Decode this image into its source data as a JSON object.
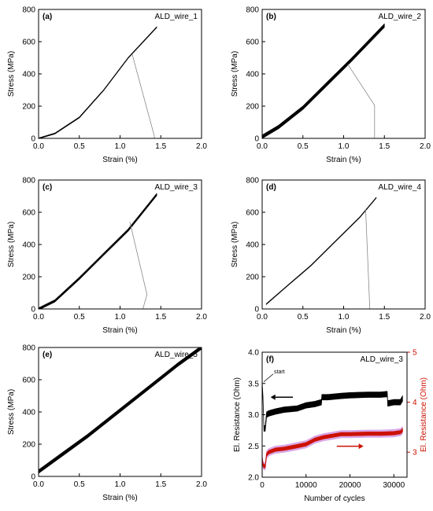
{
  "figure": {
    "colors": {
      "primary": "#000000",
      "secondary": "#cc1100",
      "secondary_halo": "#d9a6e6",
      "failure_line": "#888888"
    }
  },
  "chart_data": [
    {
      "panel": "(a)",
      "type": "line",
      "annotation": "ALD_wire_1",
      "xlabel": "Strain (%)",
      "ylabel": "Stress (MPa)",
      "xlim": [
        0,
        2.0
      ],
      "ylim": [
        0,
        800
      ],
      "xticks": [
        "0.0",
        "0.5",
        "1.0",
        "1.5",
        "2.0"
      ],
      "yticks": [
        "0",
        "200",
        "400",
        "600",
        "800"
      ],
      "loading": {
        "x": [
          0.0,
          0.2,
          0.5,
          0.8,
          1.1,
          1.45
        ],
        "y": [
          0,
          30,
          130,
          300,
          500,
          690
        ],
        "band": 6
      },
      "failure": {
        "x": [
          1.15,
          1.42,
          1.42
        ],
        "y": [
          520,
          15,
          0
        ]
      }
    },
    {
      "panel": "(b)",
      "type": "line",
      "annotation": "ALD_wire_2",
      "xlabel": "Strain (%)",
      "ylabel": "Stress (MPa)",
      "xlim": [
        0,
        2.0
      ],
      "ylim": [
        0,
        800
      ],
      "xticks": [
        "0.0",
        "0.5",
        "1.0",
        "1.5",
        "2.0"
      ],
      "yticks": [
        "0",
        "200",
        "400",
        "600",
        "800"
      ],
      "loading": {
        "x": [
          0.0,
          0.2,
          0.5,
          0.8,
          1.1,
          1.5
        ],
        "y": [
          10,
          70,
          190,
          340,
          490,
          700
        ],
        "band": 22
      },
      "failure": {
        "x": [
          1.05,
          1.38,
          1.38
        ],
        "y": [
          460,
          205,
          0
        ]
      }
    },
    {
      "panel": "(c)",
      "type": "line",
      "annotation": "ALD_wire_3",
      "xlabel": "Strain (%)",
      "ylabel": "Stress (MPa)",
      "xlim": [
        0,
        2.0
      ],
      "ylim": [
        0,
        800
      ],
      "xticks": [
        "0.0",
        "0.5",
        "1.0",
        "1.5",
        "2.0"
      ],
      "yticks": [
        "0",
        "200",
        "400",
        "600",
        "800"
      ],
      "loading": {
        "x": [
          0.0,
          0.2,
          0.5,
          0.8,
          1.1,
          1.45
        ],
        "y": [
          0,
          50,
          190,
          340,
          490,
          710
        ],
        "band": 14
      },
      "failure": {
        "x": [
          1.12,
          1.33,
          1.28,
          1.28
        ],
        "y": [
          540,
          90,
          0,
          0
        ]
      }
    },
    {
      "panel": "(d)",
      "type": "line",
      "annotation": "ALD_wire_4",
      "xlabel": "Strain (%)",
      "ylabel": "Stress (MPa)",
      "xlim": [
        0,
        2.0
      ],
      "ylim": [
        0,
        800
      ],
      "xticks": [
        "0.0",
        "0.5",
        "1.0",
        "1.5",
        "2.0"
      ],
      "yticks": [
        "0",
        "200",
        "400",
        "600",
        "800"
      ],
      "loading": {
        "x": [
          0.05,
          0.3,
          0.6,
          0.9,
          1.2,
          1.4
        ],
        "y": [
          30,
          140,
          270,
          420,
          570,
          690
        ],
        "band": 5
      },
      "failure": {
        "x": [
          1.27,
          1.32,
          1.32
        ],
        "y": [
          620,
          15,
          0
        ]
      }
    },
    {
      "panel": "(e)",
      "type": "line",
      "annotation": "ALD_wire_5",
      "xlabel": "Strain (%)",
      "ylabel": "Stress (MPa)",
      "xlim": [
        0,
        2.0
      ],
      "ylim": [
        0,
        800
      ],
      "xticks": [
        "0.0",
        "0.5",
        "1.0",
        "1.5",
        "2.0"
      ],
      "yticks": [
        "0",
        "200",
        "400",
        "600",
        "800"
      ],
      "loading": {
        "x": [
          0.0,
          0.3,
          0.6,
          0.9,
          1.2,
          1.5,
          1.7,
          2.0
        ],
        "y": [
          30,
          140,
          250,
          370,
          490,
          610,
          690,
          800
        ],
        "band": 22
      },
      "failure": {
        "x": [],
        "y": []
      }
    },
    {
      "panel": "(f)",
      "type": "line",
      "annotation": "ALD_wire_3",
      "xlabel": "Number of cycles",
      "ylabel": "El. Resistance (Ohm)",
      "y2label": "El. Resistance (Ohm)",
      "xlim": [
        0,
        33000
      ],
      "ylim": [
        2.0,
        4.0
      ],
      "y2lim": [
        2.5,
        5.0
      ],
      "xticks": [
        "0",
        "10000",
        "20000",
        "30000"
      ],
      "xtick_values": [
        0,
        10000,
        20000,
        30000
      ],
      "yticks": [
        "2.0",
        "2.5",
        "3.0",
        "3.5",
        "4.0"
      ],
      "y2ticks": [
        "3",
        "4",
        "5"
      ],
      "y2tick_values": [
        3,
        4,
        5
      ],
      "start_label": "start",
      "series": [
        {
          "axis": "left",
          "color": "#000000",
          "band": 0.09,
          "x": [
            0,
            200,
            400,
            700,
            1000,
            1500,
            3000,
            5000,
            8000,
            10000,
            12000,
            13500,
            13600,
            15000,
            18000,
            20000,
            24000,
            27000,
            28500,
            28600,
            30000,
            31500,
            32000
          ],
          "y": [
            3.5,
            3.25,
            2.78,
            2.78,
            3.0,
            3.02,
            3.05,
            3.08,
            3.1,
            3.15,
            3.17,
            3.2,
            3.28,
            3.28,
            3.3,
            3.31,
            3.32,
            3.32,
            3.33,
            3.18,
            3.2,
            3.2,
            3.26
          ]
        },
        {
          "axis": "right",
          "color": "#cc1100",
          "band": 0.07,
          "x": [
            0,
            200,
            400,
            700,
            1000,
            1500,
            3000,
            5000,
            8000,
            10000,
            12000,
            14000,
            16000,
            18000,
            20000,
            24000,
            27000,
            30000,
            31500,
            32000
          ],
          "y": [
            2.88,
            2.75,
            2.72,
            2.72,
            2.95,
            3.0,
            3.05,
            3.07,
            3.12,
            3.16,
            3.25,
            3.3,
            3.33,
            3.36,
            3.36,
            3.37,
            3.37,
            3.38,
            3.4,
            3.44
          ]
        }
      ],
      "arrows": [
        {
          "direction": "left",
          "x": [
            7000,
            3000
          ],
          "y": [
            3.28,
            3.28
          ],
          "axis": "left"
        },
        {
          "direction": "right",
          "x": [
            17000,
            22000
          ],
          "y": [
            3.12,
            3.12
          ],
          "axis": "right"
        }
      ]
    }
  ]
}
